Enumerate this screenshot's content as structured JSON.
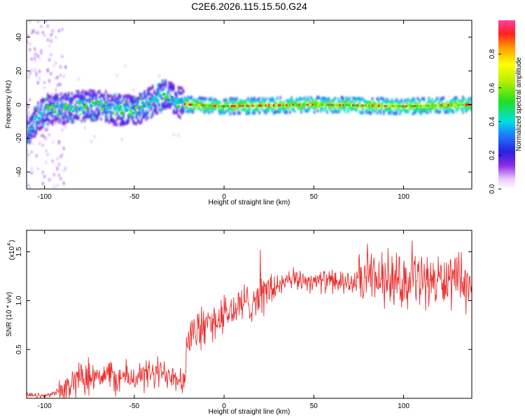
{
  "chart_data": [
    {
      "type": "heatmap",
      "title": "C2E6.2026.115.15.50.G24",
      "xlabel": "Height of straight line (km)",
      "ylabel": "Frequency (Hz)",
      "xlim": [
        -110,
        138
      ],
      "ylim": [
        -50,
        50
      ],
      "xticks": [
        "-100",
        "-50",
        "0",
        "50",
        "100"
      ],
      "yticks": [
        "40",
        "20",
        "0",
        "-20",
        "-40"
      ],
      "colorbar": {
        "label": "Normalized spectral amplitude",
        "range": [
          0.0,
          1.0
        ],
        "ticks": [
          "0.0",
          "0.2",
          "0.4",
          "0.6",
          "0.8"
        ]
      },
      "ridge": {
        "description_points_x": [
          -110,
          -100,
          -90,
          -80,
          -70,
          -60,
          -50,
          -40,
          -33,
          -30,
          -25,
          -20,
          0,
          50,
          100,
          138
        ],
        "frequency_hz": [
          -16,
          -3,
          -2,
          -1,
          0,
          -3,
          -4,
          2,
          6,
          4,
          1,
          0,
          -1,
          0,
          -1,
          0
        ]
      }
    },
    {
      "type": "line",
      "xlabel": "Height of straight line (km)",
      "ylabel": "SNR (10 * v/v)",
      "yscale_label": "(x10",
      "yscale_exp": "4",
      "xlim": [
        -110,
        138
      ],
      "ylim": [
        0,
        1.72
      ],
      "xticks": [
        "-100",
        "-50",
        "0",
        "50",
        "100"
      ],
      "yticks": [
        "1.5",
        "1.0",
        "0.5"
      ],
      "series": [
        {
          "name": "SNR",
          "color": "#e8302f",
          "trend_x": [
            -110,
            -100,
            -90,
            -80,
            -70,
            -60,
            -50,
            -40,
            -30,
            -22,
            -20,
            -10,
            0,
            10,
            20,
            30,
            40,
            50,
            60,
            70,
            80,
            90,
            100,
            110,
            120,
            130,
            138
          ],
          "trend_y": [
            0.03,
            0.02,
            0.08,
            0.22,
            0.26,
            0.2,
            0.22,
            0.24,
            0.26,
            0.2,
            0.62,
            0.75,
            0.85,
            0.95,
            1.05,
            1.15,
            1.22,
            1.2,
            1.2,
            1.18,
            1.2,
            1.22,
            1.2,
            1.22,
            1.2,
            1.18,
            1.15
          ]
        }
      ]
    }
  ],
  "colors": {
    "snr_line": "#e8302f",
    "axis": "#000000",
    "background": "#ffffff"
  }
}
